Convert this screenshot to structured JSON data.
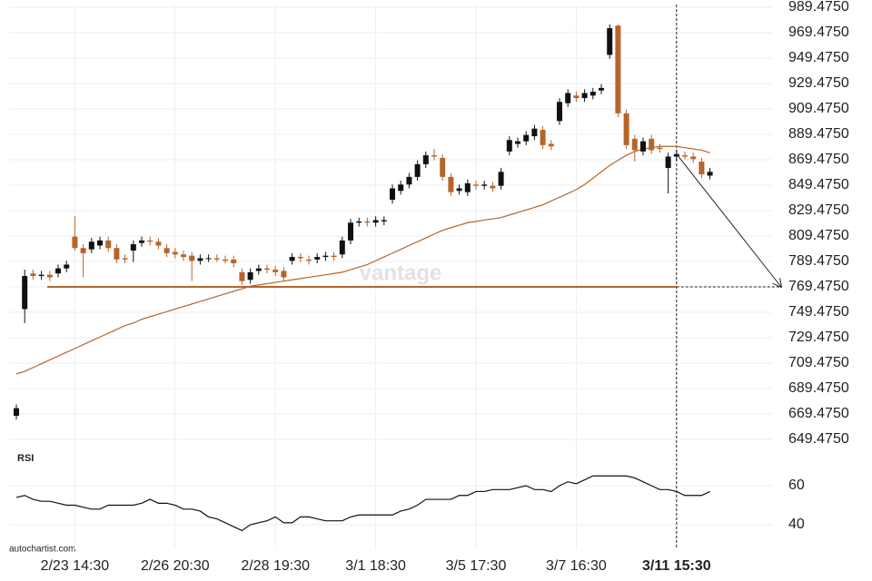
{
  "chart_data": {
    "type": "candlestick",
    "categories": [
      null,
      null,
      null,
      null,
      null,
      null,
      null,
      "2/23 14:30",
      null,
      null,
      null,
      null,
      null,
      null,
      null,
      null,
      null,
      null,
      null,
      "2/26 20:30",
      null,
      null,
      null,
      null,
      null,
      null,
      null,
      null,
      null,
      null,
      null,
      "2/28 19:30",
      null,
      null,
      null,
      null,
      null,
      null,
      null,
      null,
      null,
      null,
      null,
      "3/1 18:30",
      null,
      null,
      null,
      null,
      null,
      null,
      null,
      null,
      null,
      null,
      null,
      "3/5 17:30",
      null,
      null,
      null,
      null,
      null,
      null,
      null,
      null,
      null,
      null,
      null,
      "3/7 16:30",
      null,
      null,
      null,
      null,
      null,
      null,
      null,
      null,
      null,
      null,
      null,
      "3/11 15:30",
      null,
      null,
      null,
      null
    ],
    "open": [
      668,
      752,
      780,
      778,
      779,
      780,
      784,
      809,
      800,
      799,
      802,
      806,
      800,
      792,
      798,
      804,
      806,
      805,
      800,
      797,
      795,
      794,
      790,
      792,
      792,
      791,
      791,
      781,
      775,
      782,
      784,
      783,
      782,
      790,
      793,
      791,
      791,
      793,
      794,
      795,
      806,
      820,
      821,
      820,
      821,
      838,
      845,
      850,
      856,
      866,
      873,
      871,
      856,
      845,
      844,
      850,
      849,
      849,
      849,
      876,
      882,
      884,
      888,
      893,
      882,
      900,
      914,
      920,
      918,
      920,
      924,
      952,
      975,
      906,
      886,
      876,
      886,
      879,
      863,
      872,
      873,
      872,
      868,
      857
    ],
    "high": [
      677,
      783,
      783,
      782,
      782,
      787,
      790,
      825,
      803,
      808,
      809,
      809,
      803,
      795,
      806,
      809,
      809,
      808,
      803,
      800,
      798,
      797,
      795,
      795,
      795,
      794,
      794,
      784,
      784,
      787,
      787,
      786,
      785,
      796,
      796,
      794,
      796,
      797,
      797,
      809,
      823,
      824,
      824,
      825,
      825,
      850,
      853,
      859,
      869,
      876,
      878,
      874,
      859,
      850,
      854,
      853,
      853,
      852,
      863,
      888,
      887,
      892,
      897,
      896,
      885,
      918,
      925,
      923,
      925,
      926,
      929,
      976,
      976,
      909,
      889,
      887,
      889,
      882,
      875,
      877,
      876,
      875,
      871,
      863
    ],
    "low": [
      665,
      741,
      775,
      775,
      774,
      777,
      781,
      798,
      777,
      796,
      799,
      797,
      788,
      788,
      789,
      801,
      802,
      799,
      793,
      792,
      790,
      774,
      787,
      789,
      789,
      788,
      785,
      771,
      772,
      779,
      780,
      778,
      774,
      787,
      789,
      787,
      788,
      790,
      790,
      792,
      803,
      817,
      817,
      817,
      818,
      835,
      842,
      847,
      853,
      863,
      869,
      853,
      841,
      842,
      841,
      846,
      846,
      844,
      846,
      873,
      879,
      881,
      885,
      878,
      877,
      897,
      911,
      915,
      915,
      917,
      921,
      949,
      903,
      878,
      868,
      873,
      874,
      875,
      843,
      869,
      870,
      867,
      855,
      854
    ],
    "close": [
      674,
      778,
      778,
      779,
      777,
      784,
      787,
      800,
      796,
      805,
      806,
      800,
      791,
      791,
      803,
      806,
      805,
      802,
      796,
      795,
      793,
      790,
      792,
      792,
      791,
      790,
      788,
      774,
      781,
      784,
      783,
      781,
      777,
      793,
      792,
      790,
      793,
      794,
      793,
      806,
      820,
      821,
      820,
      822,
      822,
      847,
      850,
      856,
      866,
      873,
      872,
      856,
      844,
      847,
      851,
      849,
      850,
      847,
      860,
      885,
      884,
      889,
      894,
      881,
      880,
      915,
      922,
      918,
      922,
      923,
      926,
      973,
      906,
      881,
      877,
      884,
      877,
      878,
      872,
      874,
      872,
      870,
      858,
      860
    ],
    "up_color": "#111111",
    "down_color": "#b5652b",
    "moving_average": {
      "color": "#b5652b",
      "values": [
        701,
        703,
        706,
        709,
        712,
        715,
        718,
        721,
        724,
        727,
        730,
        733,
        736,
        739,
        741,
        744,
        746,
        748,
        750,
        752,
        754,
        756,
        758,
        760,
        762,
        764,
        766,
        768,
        770,
        771,
        772,
        773,
        774,
        775,
        776,
        777,
        778,
        779,
        780,
        781,
        783,
        785,
        787,
        790,
        793,
        796,
        799,
        802,
        805,
        808,
        811,
        814,
        816,
        818,
        820,
        821,
        822,
        823,
        824,
        826,
        828,
        830,
        832,
        834,
        837,
        840,
        843,
        846,
        850,
        855,
        860,
        865,
        869,
        873,
        876,
        878,
        879,
        880,
        880,
        880,
        879,
        878,
        877,
        875
      ]
    },
    "level": 769.475,
    "ylim": [
      644.475,
      994.475
    ],
    "yticks": [
      {
        "value": 989.475,
        "label": "989.4750"
      },
      {
        "value": 969.475,
        "label": "969.4750"
      },
      {
        "value": 949.475,
        "label": "949.4750"
      },
      {
        "value": 929.475,
        "label": "929.4750"
      },
      {
        "value": 909.475,
        "label": "909.4750"
      },
      {
        "value": 889.475,
        "label": "889.4750"
      },
      {
        "value": 869.475,
        "label": "869.4750"
      },
      {
        "value": 849.475,
        "label": "849.4750"
      },
      {
        "value": 829.475,
        "label": "829.4750"
      },
      {
        "value": 809.475,
        "label": "809.4750"
      },
      {
        "value": 789.475,
        "label": "789.4750"
      },
      {
        "value": 769.475,
        "label": "769.4750"
      },
      {
        "value": 749.475,
        "label": "749.4750"
      },
      {
        "value": 729.475,
        "label": "729.4750"
      },
      {
        "value": 709.475,
        "label": "709.4750"
      },
      {
        "value": 689.475,
        "label": "689.4750"
      },
      {
        "value": 669.475,
        "label": "669.4750"
      },
      {
        "value": 649.475,
        "label": "649.4750"
      }
    ],
    "rsi": {
      "title": "RSI",
      "color": "#111111",
      "ylim": [
        30,
        70
      ],
      "yticks": [
        60,
        40
      ],
      "values": [
        54,
        55,
        53,
        52,
        52,
        51,
        50,
        50,
        49,
        48,
        48,
        50,
        50,
        50,
        50,
        51,
        53,
        51,
        51,
        50,
        48,
        48,
        47,
        44,
        43,
        41,
        39,
        37,
        40,
        41,
        42,
        44,
        41,
        41,
        44,
        44,
        43,
        42,
        42,
        42,
        44,
        45,
        45,
        45,
        45,
        45,
        47,
        48,
        50,
        53,
        53,
        53,
        53,
        55,
        55,
        57,
        57,
        58,
        58,
        58,
        59,
        60,
        58,
        58,
        57,
        60,
        62,
        61,
        63,
        65,
        65,
        65,
        65,
        65,
        64,
        62,
        60,
        58,
        58,
        57,
        55,
        55,
        55,
        57
      ]
    },
    "grid": true,
    "watermark": "vantage",
    "source": "autochartist.com"
  }
}
